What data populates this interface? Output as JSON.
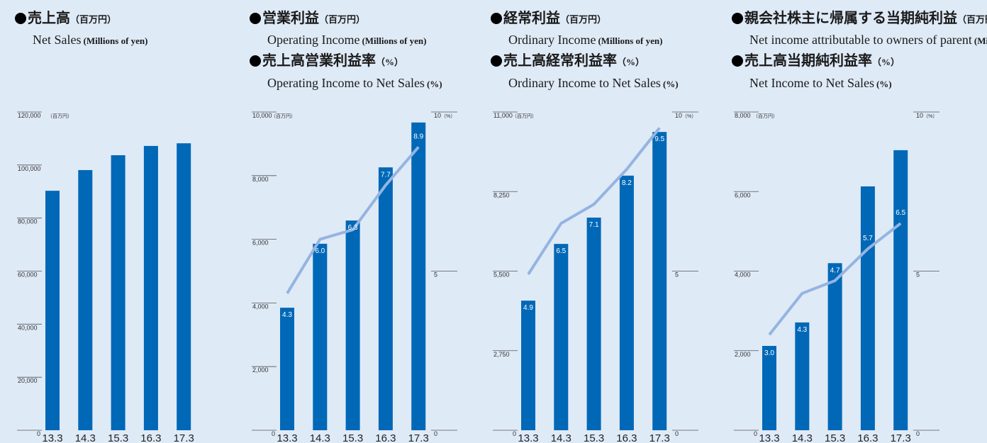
{
  "chart_data": [
    {
      "type": "bar",
      "title": "売上高",
      "title_unit": "（百万円）",
      "title_en": "Net Sales",
      "title_en_unit": "(Millions of yen)",
      "categories": [
        "13.3",
        "14.3",
        "15.3",
        "16.3",
        "17.3"
      ],
      "y_unit": "（百万円）",
      "series": [
        {
          "name": "売上高",
          "color": "#0068b7",
          "values": [
            90300,
            98100,
            103700,
            107200,
            108200
          ]
        }
      ],
      "ylim": [
        0,
        120000
      ],
      "yticks": [
        0,
        {
          "value": 20000,
          "label": "20,000"
        },
        {
          "value": 40000,
          "label": "40,000"
        },
        {
          "value": 60000,
          "label": "60,000"
        },
        {
          "value": 80000,
          "label": "80,000"
        },
        {
          "value": 100000,
          "label": "100,000"
        },
        {
          "value": 120000,
          "label": "120,000"
        }
      ]
    },
    {
      "type": "bar",
      "title": "営業利益",
      "title_unit": "（百万円）",
      "title_en": "Operating Income",
      "title_en_unit": "(Millions of yen)",
      "legend2": "売上高営業利益率",
      "legend2_unit": "（%）",
      "legend2_en": "Operating Income to Net Sales",
      "legend2_en_unit": "(%)",
      "categories": [
        "13.3",
        "14.3",
        "15.3",
        "16.3",
        "17.3"
      ],
      "y_unit": "（百万円）",
      "y2_unit": "（%）",
      "series": [
        {
          "name": "営業利益",
          "color": "#0068b7",
          "values": [
            3850,
            5860,
            6590,
            8260,
            9670
          ]
        },
        {
          "name": "売上高営業利益率",
          "type": "line",
          "axis": "y2",
          "color": "#94b4e1",
          "values": [
            4.3,
            6.0,
            6.3,
            7.7,
            8.9
          ],
          "value_labels": [
            "4.3",
            "6.0",
            "6.3",
            "7.7",
            "8.9"
          ]
        }
      ],
      "ylim": [
        0,
        10000
      ],
      "yticks": [
        0,
        {
          "value": 2000,
          "label": "2,000"
        },
        {
          "value": 4000,
          "label": "4,000"
        },
        {
          "value": 6000,
          "label": "6,000"
        },
        {
          "value": 8000,
          "label": "8,000"
        },
        {
          "value": 10000,
          "label": "10,000"
        }
      ],
      "y2lim": [
        0,
        10
      ],
      "y2ticks": [
        0,
        5,
        10
      ]
    },
    {
      "type": "bar",
      "title": "経常利益",
      "title_unit": "（百万円）",
      "title_en": "Ordinary Income",
      "title_en_unit": "(Millions of yen)",
      "legend2": "売上高経常利益率",
      "legend2_unit": "（%）",
      "legend2_en": "Ordinary Income to Net Sales",
      "legend2_en_unit": "(%)",
      "categories": [
        "13.3",
        "14.3",
        "15.3",
        "16.3",
        "17.3"
      ],
      "y_unit": "（百万円）",
      "y2_unit": "（%）",
      "series": [
        {
          "name": "経常利益",
          "color": "#0068b7",
          "values": [
            4480,
            6440,
            7350,
            8800,
            10310
          ]
        },
        {
          "name": "売上高経常利益率",
          "type": "line",
          "axis": "y2",
          "color": "#94b4e1",
          "values": [
            4.9,
            6.5,
            7.1,
            8.2,
            9.5
          ],
          "value_labels": [
            "4.9",
            "6.5",
            "7.1",
            "8.2",
            "9.5"
          ]
        }
      ],
      "ylim": [
        0,
        11000
      ],
      "yticks": [
        0,
        {
          "value": 2750,
          "label": "2,750"
        },
        {
          "value": 5500,
          "label": "5,500"
        },
        {
          "value": 8250,
          "label": "8,250"
        },
        {
          "value": 11000,
          "label": "11,000"
        }
      ],
      "y2lim": [
        0,
        10
      ],
      "y2ticks": [
        0,
        5,
        10
      ]
    },
    {
      "type": "bar",
      "title": "親会社株主に帰属する当期純利益",
      "title_unit": "（百万円）",
      "title_en": "Net income attributable to owners of parent",
      "title_en_unit": "(Millions of yen)",
      "legend2": "売上高当期純利益率",
      "legend2_unit": "（%）",
      "legend2_en": "Net Income to Net Sales",
      "legend2_en_unit": "(%)",
      "categories": [
        "13.3",
        "14.3",
        "15.3",
        "16.3",
        "17.3"
      ],
      "y_unit": "（百万円）",
      "y2_unit": "（%）",
      "series": [
        {
          "name": "親会社株主に帰属する当期純利益",
          "color": "#0068b7",
          "values": [
            2120,
            2710,
            4200,
            6130,
            7040
          ]
        },
        {
          "name": "売上高当期純利益率",
          "type": "line",
          "axis": "y2",
          "color": "#94b4e1",
          "values": [
            3.0,
            4.3,
            4.7,
            5.7,
            6.5
          ],
          "value_labels": [
            "3.0",
            "4.3",
            "4.7",
            "5.7",
            "6.5"
          ]
        }
      ],
      "ylim": [
        0,
        8000
      ],
      "yticks": [
        0,
        {
          "value": 2000,
          "label": "2,000"
        },
        {
          "value": 4000,
          "label": "4,000"
        },
        {
          "value": 6000,
          "label": "6,000"
        },
        {
          "value": 8000,
          "label": "8,000"
        }
      ],
      "y2lim": [
        0,
        10
      ],
      "y2ticks": [
        0,
        5,
        10
      ]
    }
  ]
}
